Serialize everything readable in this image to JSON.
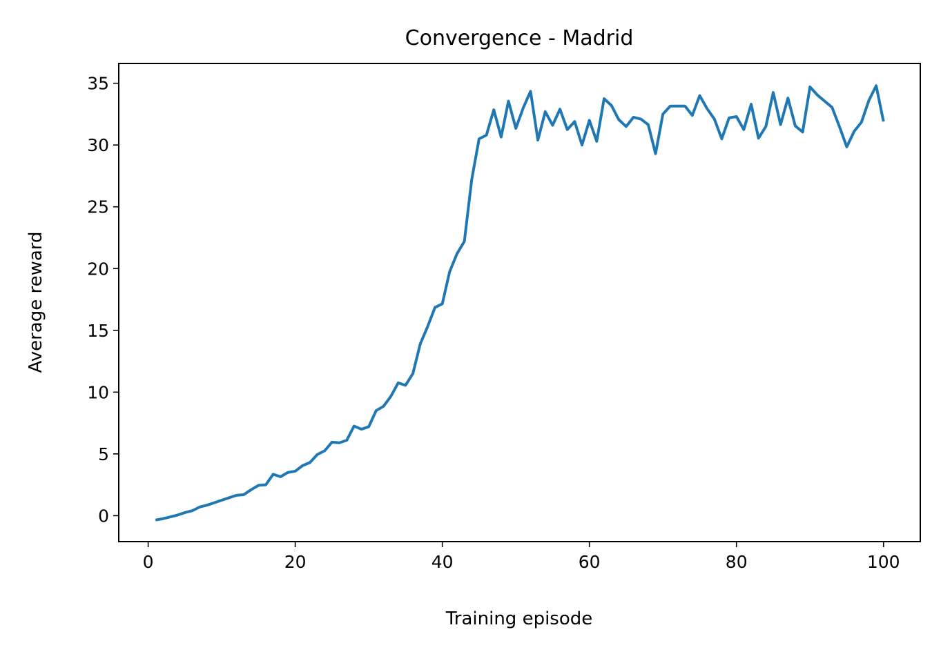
{
  "chart_data": {
    "type": "line",
    "title": "Convergence - Madrid",
    "xlabel": "Training episode",
    "ylabel": "Average reward",
    "xlim": [
      -4,
      105
    ],
    "ylim": [
      -2.1,
      36.6
    ],
    "xticks": [
      0,
      20,
      40,
      60,
      80,
      100
    ],
    "yticks": [
      0,
      5,
      10,
      15,
      20,
      25,
      30,
      35
    ],
    "grid": false,
    "legend": "none",
    "series": [
      {
        "color": "#1f77b4",
        "x": [
          1,
          2,
          3,
          4,
          5,
          6,
          7,
          8,
          9,
          10,
          11,
          12,
          13,
          14,
          15,
          16,
          17,
          18,
          19,
          20,
          21,
          22,
          23,
          24,
          25,
          26,
          27,
          28,
          29,
          30,
          31,
          32,
          33,
          34,
          35,
          36,
          37,
          38,
          39,
          40,
          41,
          42,
          43,
          44,
          45,
          46,
          47,
          48,
          49,
          50,
          51,
          52,
          53,
          54,
          55,
          56,
          57,
          58,
          59,
          60,
          61,
          62,
          63,
          64,
          65,
          66,
          67,
          68,
          69,
          70,
          71,
          72,
          73,
          74,
          75,
          76,
          77,
          78,
          79,
          80,
          81,
          82,
          83,
          84,
          85,
          86,
          87,
          88,
          89,
          90,
          91,
          92,
          93,
          94,
          95,
          96,
          97,
          98,
          99,
          100
        ],
        "y": [
          -0.35,
          -0.25,
          -0.1,
          0.05,
          0.25,
          0.4,
          0.7,
          0.85,
          1.05,
          1.25,
          1.45,
          1.65,
          1.7,
          2.1,
          2.45,
          2.5,
          3.35,
          3.15,
          3.5,
          3.6,
          4.05,
          4.3,
          4.95,
          5.25,
          5.95,
          5.9,
          6.1,
          7.25,
          7.0,
          7.2,
          8.5,
          8.85,
          9.65,
          10.75,
          10.55,
          11.5,
          13.9,
          15.3,
          16.85,
          17.15,
          19.75,
          21.2,
          22.2,
          27.2,
          30.5,
          30.8,
          32.85,
          30.65,
          33.55,
          31.35,
          33.0,
          34.35,
          30.4,
          32.7,
          31.6,
          32.9,
          31.25,
          31.9,
          30.0,
          32.0,
          30.3,
          33.75,
          33.2,
          32.05,
          31.5,
          32.25,
          32.1,
          31.65,
          29.3,
          32.5,
          33.15,
          33.15,
          33.15,
          32.4,
          34.0,
          32.95,
          32.1,
          30.5,
          32.2,
          32.3,
          31.25,
          33.3,
          30.55,
          31.5,
          34.25,
          31.65,
          33.8,
          31.55,
          31.05,
          34.7,
          34.05,
          33.55,
          33.05,
          31.5,
          29.85,
          31.1,
          31.85,
          33.6,
          34.8,
          31.9
        ]
      }
    ]
  }
}
